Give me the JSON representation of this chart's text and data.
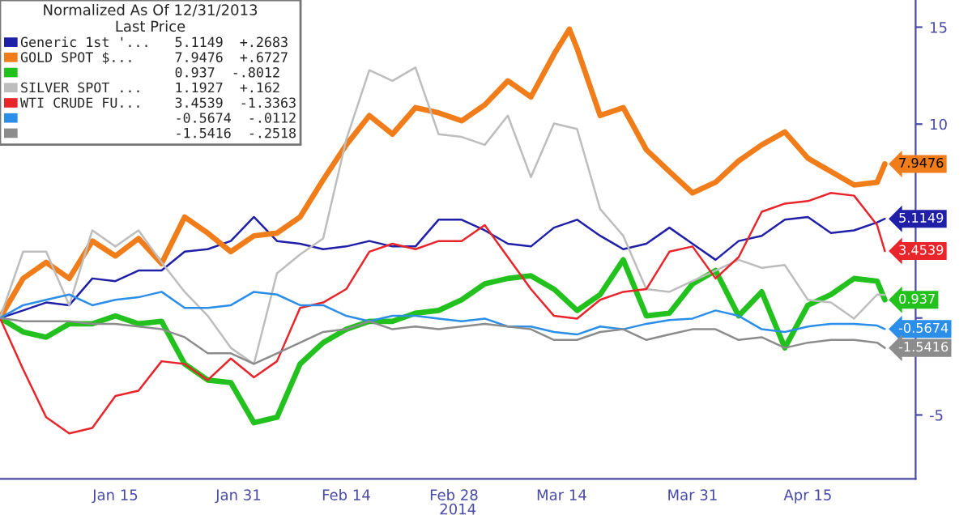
{
  "chart_data": {
    "type": "line",
    "legend_title": "Normalized As Of 12/31/2013\nLast Price",
    "xlabel": "2014",
    "x": [
      "2013-12-31",
      "2014-01-03",
      "2014-01-06",
      "2014-01-09",
      "2014-01-12",
      "2014-01-15",
      "2014-01-18",
      "2014-01-21",
      "2014-01-24",
      "2014-01-27",
      "2014-01-30",
      "2014-02-02",
      "2014-02-05",
      "2014-02-08",
      "2014-02-11",
      "2014-02-14",
      "2014-02-17",
      "2014-02-20",
      "2014-02-23",
      "2014-02-26",
      "2014-03-01",
      "2014-03-04",
      "2014-03-07",
      "2014-03-10",
      "2014-03-13",
      "2014-03-16",
      "2014-03-19",
      "2014-03-22",
      "2014-03-25",
      "2014-03-28",
      "2014-03-31",
      "2014-04-03",
      "2014-04-06",
      "2014-04-09",
      "2014-04-12",
      "2014-04-15",
      "2014-04-18",
      "2014-04-21",
      "2014-04-24",
      "2014-04-25"
    ],
    "series": [
      {
        "name": "Generic 1st '...",
        "color": "#1f1fa8",
        "values": [
          0,
          0.39,
          0.8,
          0.66,
          2.04,
          1.9,
          2.45,
          2.45,
          3.42,
          3.55,
          3.97,
          5.21,
          3.97,
          3.83,
          3.55,
          3.69,
          3.97,
          3.69,
          3.69,
          5.07,
          5.07,
          4.52,
          3.83,
          3.69,
          4.66,
          5.07,
          4.24,
          3.55,
          3.83,
          4.66,
          3.83,
          3.0,
          3.97,
          4.24,
          5.07,
          5.21,
          4.38,
          4.52,
          4.93,
          5.1149
        ],
        "value_labels": [
          null,
          null,
          null,
          null,
          null,
          null,
          null,
          null,
          null,
          null,
          null,
          null,
          null,
          null,
          null,
          null,
          null,
          null,
          null,
          null,
          null,
          null,
          null,
          null,
          null,
          null,
          null,
          null,
          null,
          null,
          null,
          null,
          null,
          null,
          null,
          null,
          null,
          null,
          null,
          "5.1149"
        ]
      },
      {
        "name": "GOLD SPOT $...",
        "color": "#f07c1a",
        "x": [
          "2013-12-31",
          "2014-01-03",
          "2014-01-06",
          "2014-01-09",
          "2014-01-12",
          "2014-01-15",
          "2014-01-18",
          "2014-01-21",
          "2014-01-24",
          "2014-01-27",
          "2014-01-30",
          "2014-02-02",
          "2014-02-05",
          "2014-02-08",
          "2014-02-11",
          "2014-02-14",
          "2014-02-17",
          "2014-02-20",
          "2014-02-23",
          "2014-02-26",
          "2014-03-01",
          "2014-03-04",
          "2014-03-07",
          "2014-03-10",
          "2014-03-13",
          "2014-03-15",
          "2014-03-16",
          "2014-03-19",
          "2014-03-22",
          "2014-03-25",
          "2014-03-28",
          "2014-03-31",
          "2014-04-03",
          "2014-04-06",
          "2014-04-09",
          "2014-04-12",
          "2014-04-15",
          "2014-04-18",
          "2014-04-21",
          "2014-04-24",
          "2014-04-25"
        ],
        "values": [
          0,
          2.04,
          2.87,
          2.04,
          3.97,
          3.2,
          4.1,
          2.81,
          5.21,
          4.38,
          3.42,
          4.24,
          4.38,
          5.21,
          7.13,
          8.93,
          10.44,
          9.48,
          10.85,
          10.58,
          10.17,
          10.99,
          12.23,
          11.4,
          13.6,
          14.9,
          13.9,
          10.44,
          10.85,
          8.68,
          7.55,
          6.45,
          7.0,
          8.1,
          8.93,
          9.6,
          8.24,
          7.55,
          6.86,
          7.0,
          7.9476
        ],
        "value_labels": [
          null,
          null,
          null,
          null,
          null,
          null,
          null,
          null,
          null,
          null,
          null,
          null,
          null,
          null,
          null,
          null,
          null,
          null,
          null,
          null,
          null,
          null,
          null,
          null,
          null,
          null,
          null,
          null,
          null,
          null,
          null,
          null,
          null,
          null,
          null,
          null,
          null,
          null,
          null,
          null,
          "7.9476"
        ]
      },
      {
        "color": "#22c11d",
        "values": [
          0,
          -0.72,
          -0.99,
          -0.3,
          -0.3,
          0.11,
          -0.3,
          -0.17,
          -2.37,
          -3.2,
          -3.33,
          -5.4,
          -5.12,
          -2.37,
          -1.27,
          -0.58,
          -0.17,
          -0.17,
          0.25,
          0.39,
          0.94,
          1.76,
          2.04,
          2.18,
          1.49,
          0.39,
          1.21,
          3.0,
          0.11,
          0.25,
          1.76,
          2.45,
          0.11,
          1.35,
          -1.54,
          0.66,
          1.21,
          2.04,
          1.9,
          0.937
        ],
        "value_labels": [
          null,
          null,
          null,
          null,
          null,
          null,
          null,
          null,
          null,
          null,
          null,
          null,
          null,
          null,
          null,
          null,
          null,
          null,
          null,
          null,
          null,
          null,
          null,
          null,
          null,
          null,
          null,
          null,
          null,
          null,
          null,
          null,
          null,
          null,
          null,
          null,
          null,
          null,
          null,
          "0.937"
        ]
      },
      {
        "name": "SILVER SPOT ...",
        "color": "#bdbdbd",
        "values": [
          0,
          3.42,
          3.42,
          0.66,
          4.52,
          3.69,
          4.52,
          2.87,
          1.35,
          0.11,
          -1.54,
          -2.37,
          2.31,
          3.28,
          4.1,
          9.2,
          12.78,
          12.23,
          12.92,
          9.48,
          9.34,
          8.93,
          10.44,
          7.27,
          10.03,
          9.75,
          5.62,
          4.24,
          1.49,
          1.35,
          1.9,
          2.45,
          3.0,
          2.59,
          2.73,
          0.94,
          0.8,
          -0.03,
          1.21,
          1.1927
        ]
      },
      {
        "name": "WTI CRUDE FU...",
        "color": "#e8252a",
        "values": [
          0,
          -2.64,
          -5.12,
          -5.95,
          -5.67,
          -4.02,
          -3.75,
          -2.23,
          -2.37,
          -3.2,
          -2.09,
          -3.06,
          -2.23,
          0.52,
          0.8,
          1.49,
          3.42,
          3.83,
          3.55,
          3.97,
          3.97,
          4.79,
          3.14,
          1.49,
          0.11,
          -0.03,
          0.94,
          1.35,
          1.49,
          3.42,
          3.69,
          2.04,
          3.14,
          5.48,
          5.9,
          6.03,
          6.45,
          6.31,
          4.79,
          3.4539
        ],
        "value_labels": [
          null,
          null,
          null,
          null,
          null,
          null,
          null,
          null,
          null,
          null,
          null,
          null,
          null,
          null,
          null,
          null,
          null,
          null,
          null,
          null,
          null,
          null,
          null,
          null,
          null,
          null,
          null,
          null,
          null,
          null,
          null,
          null,
          null,
          null,
          null,
          null,
          null,
          null,
          null,
          "3.4539"
        ]
      },
      {
        "color": "#2b8ee8",
        "values": [
          0,
          0.66,
          0.94,
          1.21,
          0.66,
          0.94,
          1.07,
          1.35,
          0.52,
          0.52,
          0.66,
          1.35,
          1.21,
          0.66,
          0.66,
          0.11,
          -0.17,
          0.11,
          0.11,
          -0.03,
          -0.17,
          -0.03,
          -0.44,
          -0.44,
          -0.72,
          -0.85,
          -0.44,
          -0.58,
          -0.3,
          -0.11,
          -0.03,
          0.39,
          0.11,
          -0.58,
          -0.72,
          -0.44,
          -0.3,
          -0.3,
          -0.39,
          -0.5674
        ],
        "value_labels": [
          null,
          null,
          null,
          null,
          null,
          null,
          null,
          null,
          null,
          null,
          null,
          null,
          null,
          null,
          null,
          null,
          null,
          null,
          null,
          null,
          null,
          null,
          null,
          null,
          null,
          null,
          null,
          null,
          null,
          null,
          null,
          null,
          null,
          null,
          null,
          null,
          null,
          null,
          null,
          "-0.5674"
        ]
      },
      {
        "color": "#8c8c8c",
        "values": [
          0,
          -0.17,
          -0.17,
          -0.17,
          -0.3,
          -0.3,
          -0.44,
          -0.58,
          -0.99,
          -1.82,
          -1.82,
          -2.37,
          -1.82,
          -1.27,
          -0.72,
          -0.58,
          -0.17,
          -0.58,
          -0.44,
          -0.58,
          -0.44,
          -0.3,
          -0.44,
          -0.58,
          -1.13,
          -1.13,
          -0.72,
          -0.58,
          -1.13,
          -0.85,
          -0.58,
          -0.58,
          -1.13,
          -0.99,
          -1.54,
          -1.27,
          -1.13,
          -1.13,
          -1.27,
          -1.5416
        ],
        "value_labels": [
          null,
          null,
          null,
          null,
          null,
          null,
          null,
          null,
          null,
          null,
          null,
          null,
          null,
          null,
          null,
          null,
          null,
          null,
          null,
          null,
          null,
          null,
          null,
          null,
          null,
          null,
          null,
          null,
          null,
          null,
          null,
          null,
          null,
          null,
          null,
          null,
          null,
          null,
          null,
          "-1.5416"
        ]
      }
    ],
    "annotations": [
      "5.1149  +.2683",
      "7.9476  +.6727",
      "0.937  -.8012",
      "1.1927  +.162",
      "3.4539  -1.3363",
      "-0.5674  -.0112",
      "-1.5416  -.2518"
    ],
    "xlim": [
      "2013-12-31",
      "2014-04-29"
    ],
    "xticks": [
      {
        "value": "2014-01-15",
        "label": "Jan 15"
      },
      {
        "value": "2014-01-31",
        "label": "Jan 31"
      },
      {
        "value": "2014-02-14",
        "label": "Feb 14"
      },
      {
        "value": "2014-02-28",
        "label": "Feb 28"
      },
      {
        "value": "2014-03-14",
        "label": "Mar 14"
      },
      {
        "value": "2014-03-31",
        "label": "Mar 31"
      },
      {
        "value": "2014-04-15",
        "label": "Apr 15"
      }
    ],
    "ylim": [
      -8.3,
      16.4
    ],
    "yticks": [
      -5,
      {
        "value": 0,
        "label": null
      },
      {
        "value": 5,
        "label": null
      },
      10,
      15
    ],
    "grid": false,
    "legend": "top left",
    "marker": "none",
    "line_style": "solid"
  }
}
